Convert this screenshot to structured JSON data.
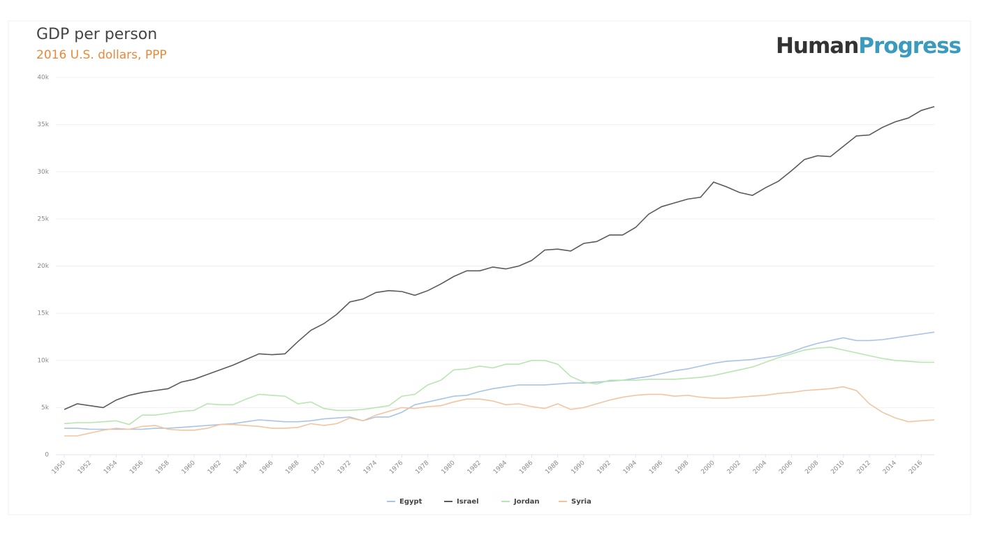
{
  "chart_data": {
    "type": "line",
    "title": "GDP per person",
    "subtitle": "2016 U.S. dollars, PPP",
    "brand": [
      "Human",
      "Progress"
    ],
    "x": [
      1950,
      1951,
      1952,
      1953,
      1954,
      1955,
      1956,
      1957,
      1958,
      1959,
      1960,
      1961,
      1962,
      1963,
      1964,
      1965,
      1966,
      1967,
      1968,
      1969,
      1970,
      1971,
      1972,
      1973,
      1974,
      1975,
      1976,
      1977,
      1978,
      1979,
      1980,
      1981,
      1982,
      1983,
      1984,
      1985,
      1986,
      1987,
      1988,
      1989,
      1990,
      1991,
      1992,
      1993,
      1994,
      1995,
      1996,
      1997,
      1998,
      1999,
      2000,
      2001,
      2002,
      2003,
      2004,
      2005,
      2006,
      2007,
      2008,
      2009,
      2010,
      2011,
      2012,
      2013,
      2014,
      2015,
      2016,
      2017
    ],
    "xlim": [
      1950,
      2017
    ],
    "xticks": [
      1950,
      1952,
      1954,
      1956,
      1958,
      1960,
      1962,
      1964,
      1966,
      1968,
      1970,
      1972,
      1974,
      1976,
      1978,
      1980,
      1982,
      1984,
      1986,
      1988,
      1990,
      1992,
      1994,
      1996,
      1998,
      2000,
      2002,
      2004,
      2006,
      2008,
      2010,
      2012,
      2014,
      2016
    ],
    "ylim": [
      0,
      40000
    ],
    "yticks": [
      0,
      {
        "value": 5000,
        "label": "5k"
      },
      {
        "value": 10000,
        "label": "10k"
      },
      {
        "value": 15000,
        "label": "15k"
      },
      {
        "value": 20000,
        "label": "20k"
      },
      {
        "value": 25000,
        "label": "25k"
      },
      {
        "value": 30000,
        "label": "30k"
      },
      {
        "value": 35000,
        "label": "35k"
      },
      {
        "value": 40000,
        "label": "40k"
      }
    ],
    "grid": true,
    "legend": "bottom",
    "series": [
      {
        "name": "Egypt",
        "color": "#a9c4e8",
        "values": [
          2800,
          2800,
          2700,
          2700,
          2700,
          2700,
          2700,
          2800,
          2800,
          2900,
          3000,
          3100,
          3200,
          3300,
          3500,
          3700,
          3600,
          3500,
          3500,
          3600,
          3800,
          3900,
          4000,
          3600,
          4000,
          4000,
          4500,
          5300,
          5600,
          5900,
          6200,
          6300,
          6700,
          7000,
          7200,
          7400,
          7400,
          7400,
          7500,
          7600,
          7600,
          7700,
          7800,
          7900,
          8100,
          8300,
          8600,
          8900,
          9100,
          9400,
          9700,
          9900,
          10000,
          10100,
          10300,
          10500,
          10900,
          11400,
          11800,
          12100,
          12400,
          12100,
          12100,
          12200,
          12400,
          12600,
          12800,
          13000
        ]
      },
      {
        "name": "Israel",
        "color": "#5a5a5a",
        "values": [
          4800,
          5400,
          5200,
          5000,
          5800,
          6300,
          6600,
          6800,
          7000,
          7700,
          8000,
          8500,
          9000,
          9500,
          10100,
          10700,
          10600,
          10700,
          12000,
          13200,
          13900,
          14900,
          16200,
          16500,
          17200,
          17400,
          17300,
          16900,
          17400,
          18100,
          18900,
          19500,
          19500,
          19900,
          19700,
          20000,
          20600,
          21700,
          21800,
          21600,
          22400,
          22600,
          23300,
          23300,
          24100,
          25500,
          26300,
          26700,
          27100,
          27300,
          28900,
          28400,
          27800,
          27500,
          28300,
          29000,
          30100,
          31300,
          31700,
          31600,
          32700,
          33800,
          33900,
          34700,
          35300,
          35700,
          36500,
          36900
        ]
      },
      {
        "name": "Jordan",
        "color": "#b8e6b0",
        "values": [
          3300,
          3400,
          3400,
          3500,
          3600,
          3200,
          4200,
          4200,
          4400,
          4600,
          4700,
          5400,
          5300,
          5300,
          5900,
          6400,
          6300,
          6200,
          5400,
          5600,
          4900,
          4700,
          4700,
          4800,
          5000,
          5200,
          6200,
          6400,
          7400,
          7900,
          9000,
          9100,
          9400,
          9200,
          9600,
          9600,
          10000,
          10000,
          9600,
          8300,
          7700,
          7500,
          7900,
          7900,
          7900,
          8000,
          8000,
          8000,
          8100,
          8200,
          8400,
          8700,
          9000,
          9300,
          9800,
          10300,
          10700,
          11100,
          11300,
          11400,
          11100,
          10800,
          10500,
          10200,
          10000,
          9900,
          9800,
          9800
        ]
      },
      {
        "name": "Syria",
        "color": "#f2c5a0",
        "values": [
          2000,
          2000,
          2300,
          2600,
          2800,
          2700,
          3000,
          3100,
          2700,
          2600,
          2600,
          2800,
          3200,
          3200,
          3100,
          3000,
          2800,
          2800,
          2900,
          3300,
          3100,
          3300,
          3900,
          3600,
          4200,
          4600,
          5000,
          4900,
          5100,
          5200,
          5600,
          5900,
          5900,
          5700,
          5300,
          5400,
          5100,
          4900,
          5400,
          4800,
          5000,
          5400,
          5800,
          6100,
          6300,
          6400,
          6400,
          6200,
          6300,
          6100,
          6000,
          6000,
          6100,
          6200,
          6300,
          6500,
          6600,
          6800,
          6900,
          7000,
          7200,
          6800,
          5400,
          4500,
          3900,
          3500,
          3600,
          3700
        ]
      }
    ]
  }
}
